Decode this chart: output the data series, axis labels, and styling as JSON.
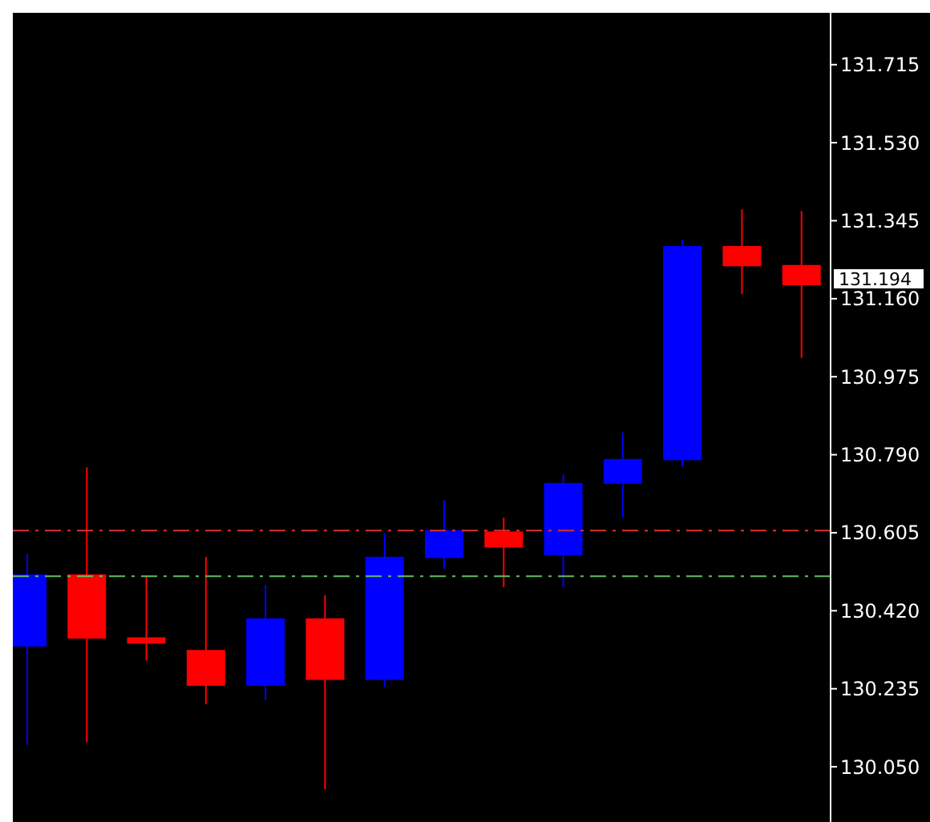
{
  "chart_data": {
    "type": "candlestick",
    "categories": [
      null,
      null,
      null,
      null,
      null,
      null,
      null,
      null,
      null,
      null,
      null,
      null,
      null,
      null
    ],
    "ohlc": [
      [
        130.335,
        130.555,
        130.102,
        130.506
      ],
      [
        130.506,
        130.76,
        130.108,
        130.354
      ],
      [
        130.357,
        130.501,
        130.302,
        130.342
      ],
      [
        130.327,
        130.548,
        130.198,
        130.242
      ],
      [
        130.242,
        130.481,
        130.208,
        130.402
      ],
      [
        130.402,
        130.457,
        129.996,
        130.256
      ],
      [
        130.256,
        130.604,
        130.24,
        130.548
      ],
      [
        130.545,
        130.682,
        130.52,
        130.611
      ],
      [
        130.608,
        130.641,
        130.476,
        130.57
      ],
      [
        130.552,
        130.743,
        130.476,
        130.723
      ],
      [
        130.721,
        130.843,
        130.641,
        130.78
      ],
      [
        130.777,
        131.3,
        130.762,
        131.285
      ],
      [
        131.285,
        131.372,
        131.171,
        131.237
      ],
      [
        131.24,
        131.368,
        131.02,
        131.192
      ]
    ],
    "colors": [
      "#0000ff",
      "#ff0000",
      "#ff0000",
      "#ff0000",
      "#0000ff",
      "#ff0000",
      "#0000ff",
      "#0000ff",
      "#ff0000",
      "#0000ff",
      "#0000ff",
      "#0000ff",
      "#ff0000",
      "#ff0000"
    ],
    "ylim": [
      129.919,
      131.838
    ],
    "yticks": [
      {
        "value": 130.05,
        "label": "130.050"
      },
      130.235,
      {
        "value": 130.42,
        "label": "130.420"
      },
      130.605,
      {
        "value": 130.79,
        "label": "130.790"
      },
      130.975,
      {
        "value": 131.16,
        "label": "131.160"
      },
      131.345,
      {
        "value": 131.53,
        "label": "131.530"
      },
      131.715
    ],
    "tick_labels": "y",
    "ref_lines": [
      {
        "axis": "y",
        "value": 130.61,
        "color": "#e03030",
        "line_style": "dashed"
      },
      {
        "axis": "y",
        "value": 130.502,
        "color": "#60c060",
        "line_style": "dashed"
      }
    ],
    "annotations": [
      "131.194"
    ]
  }
}
